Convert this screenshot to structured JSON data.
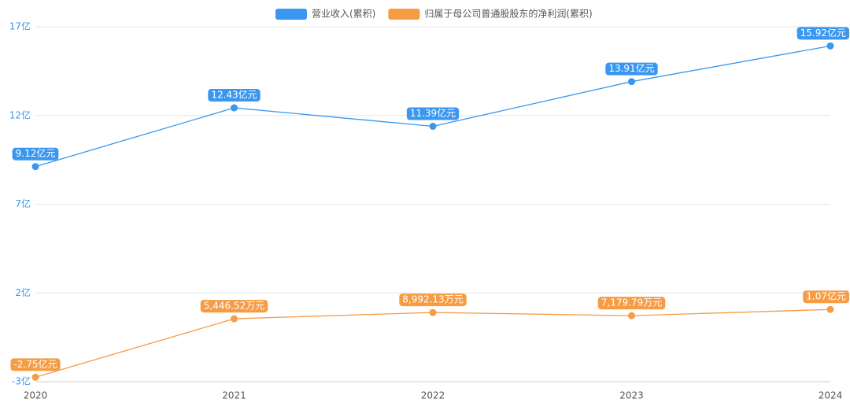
{
  "chart_data": {
    "type": "line",
    "categories": [
      "2020",
      "2021",
      "2022",
      "2023",
      "2024"
    ],
    "series": [
      {
        "name": "营业收入(累积)",
        "color": "#3a97ef",
        "values": [
          9.12,
          12.43,
          11.39,
          13.91,
          15.92
        ],
        "value_labels": [
          "9.12亿元",
          "12.43亿元",
          "11.39亿元",
          "13.91亿元",
          "15.92亿元"
        ]
      },
      {
        "name": "归属于母公司普通股股东的净利润(累积)",
        "color": "#f59c45",
        "values": [
          -2.75,
          0.544652,
          0.899213,
          0.717979,
          1.07
        ],
        "value_labels": [
          "-2.75亿元",
          "5,446.52万元",
          "8,992.13万元",
          "7,179.79万元",
          "1.07亿元"
        ]
      }
    ],
    "ylim": [
      -3,
      17
    ],
    "yticks": [
      {
        "value": -3,
        "label": "-3亿"
      },
      {
        "value": 2,
        "label": "2亿"
      },
      {
        "value": 7,
        "label": "7亿"
      },
      {
        "value": 12,
        "label": "12亿"
      },
      {
        "value": 17,
        "label": "17亿"
      }
    ],
    "grid": true,
    "legend": "top"
  }
}
